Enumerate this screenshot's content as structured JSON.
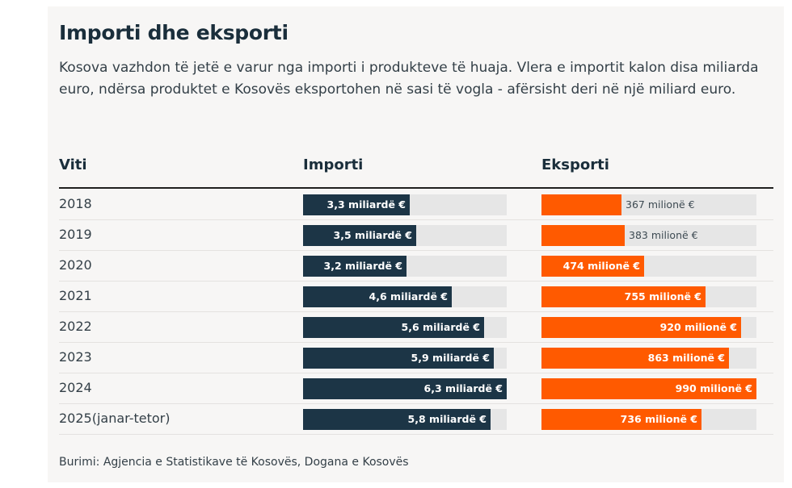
{
  "title": "Importi dhe eksporti",
  "description": "Kosova vazhdon të jetë e varur nga importi i produkteve të huaja. Vlera e importit kalon disa miliarda euro, ndërsa produktet e Kosovës eksportohen në sasi të vogla - afërsisht deri në një miliard euro.",
  "source": "Burimi: Agjencia e Statistikave të Kosovës, Dogana e Kosovës",
  "colors": {
    "import": "#1c3546",
    "export": "#ff5a00",
    "track": "#e6e6e6"
  },
  "chart_data": {
    "type": "bar",
    "title": "Importi dhe eksporti",
    "columns": [
      "Viti",
      "Importi",
      "Eksporti"
    ],
    "categories": [
      "2018",
      "2019",
      "2020",
      "2021",
      "2022",
      "2023",
      "2024",
      "2025(janar-tetor)"
    ],
    "series": [
      {
        "name": "Importi",
        "unit": "miliardë €",
        "values": [
          3.3,
          3.5,
          3.2,
          4.6,
          5.6,
          5.9,
          6.3,
          5.8
        ],
        "labels": [
          "3,3 miliardë €",
          "3,5 miliardë €",
          "3,2 miliardë €",
          "4,6 miliardë €",
          "5,6 miliardë €",
          "5,9 miliardë €",
          "6,3 miliardë €",
          "5,8 miliardë €"
        ],
        "max": 6.3
      },
      {
        "name": "Eksporti",
        "unit": "milionë €",
        "values": [
          367,
          383,
          474,
          755,
          920,
          863,
          990,
          736
        ],
        "labels": [
          "367 milionë €",
          "383 milionë €",
          "474 milionë €",
          "755 milionë €",
          "920 milionë €",
          "863 milionë €",
          "990 milionë €",
          "736 milionë €"
        ],
        "max": 990
      }
    ]
  }
}
